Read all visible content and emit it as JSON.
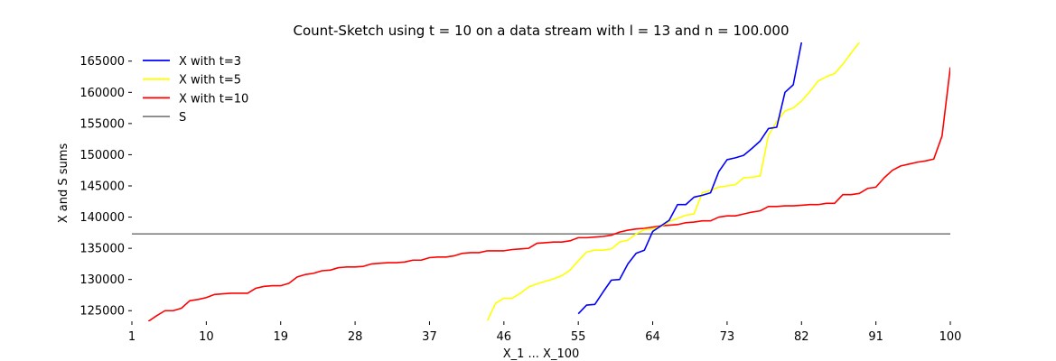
{
  "chart_data": {
    "type": "line",
    "title": "Count-Sketch using t = 10 on a data stream with l = 13 and n = 100.000",
    "xlabel": "X_1 ... X_100",
    "ylabel": "X and S sums",
    "xlim": [
      1,
      100
    ],
    "ylim": [
      123300,
      168000
    ],
    "xticks": [
      1,
      10,
      19,
      28,
      37,
      46,
      55,
      64,
      73,
      82,
      91,
      100
    ],
    "yticks": [
      125000,
      130000,
      135000,
      140000,
      145000,
      150000,
      155000,
      160000,
      165000
    ],
    "grid": false,
    "legend_position": "top-left",
    "series": [
      {
        "name": "X with t=3",
        "color": "#0000ff",
        "points": [
          [
            55,
            124500
          ],
          [
            56,
            125900
          ],
          [
            57,
            126000
          ],
          [
            58,
            128000
          ],
          [
            59,
            129900
          ],
          [
            60,
            130000
          ],
          [
            61,
            132500
          ],
          [
            62,
            134200
          ],
          [
            63,
            134700
          ],
          [
            64,
            137700
          ],
          [
            65,
            138600
          ],
          [
            66,
            139500
          ],
          [
            67,
            142000
          ],
          [
            68,
            142000
          ],
          [
            69,
            143200
          ],
          [
            70,
            143500
          ],
          [
            71,
            143900
          ],
          [
            72,
            147300
          ],
          [
            73,
            149200
          ],
          [
            74,
            149500
          ],
          [
            75,
            149900
          ],
          [
            76,
            151000
          ],
          [
            77,
            152200
          ],
          [
            78,
            154200
          ],
          [
            79,
            154400
          ],
          [
            80,
            160000
          ],
          [
            81,
            161200
          ],
          [
            82,
            168000
          ]
        ]
      },
      {
        "name": "X with t=5",
        "color": "#ffff00",
        "points": [
          [
            44,
            123400
          ],
          [
            45,
            126200
          ],
          [
            46,
            127000
          ],
          [
            47,
            127000
          ],
          [
            48,
            127800
          ],
          [
            49,
            128800
          ],
          [
            50,
            129300
          ],
          [
            51,
            129700
          ],
          [
            52,
            130100
          ],
          [
            53,
            130600
          ],
          [
            54,
            131500
          ],
          [
            55,
            133000
          ],
          [
            56,
            134400
          ],
          [
            57,
            134700
          ],
          [
            58,
            134700
          ],
          [
            59,
            134900
          ],
          [
            60,
            136000
          ],
          [
            61,
            136300
          ],
          [
            62,
            137300
          ],
          [
            63,
            138000
          ],
          [
            64,
            138100
          ],
          [
            65,
            138500
          ],
          [
            66,
            139300
          ],
          [
            67,
            139800
          ],
          [
            68,
            140300
          ],
          [
            69,
            140500
          ],
          [
            70,
            143900
          ],
          [
            71,
            144300
          ],
          [
            72,
            144800
          ],
          [
            73,
            145000
          ],
          [
            74,
            145200
          ],
          [
            75,
            146300
          ],
          [
            76,
            146400
          ],
          [
            77,
            146600
          ],
          [
            78,
            153100
          ],
          [
            79,
            155300
          ],
          [
            80,
            157000
          ],
          [
            81,
            157500
          ],
          [
            82,
            158600
          ],
          [
            83,
            160100
          ],
          [
            84,
            161800
          ],
          [
            85,
            162500
          ],
          [
            86,
            163000
          ],
          [
            87,
            164500
          ],
          [
            88,
            166300
          ],
          [
            89,
            168000
          ]
        ]
      },
      {
        "name": "X with t=10",
        "color": "#ff0000",
        "points": [
          [
            3,
            123300
          ],
          [
            4,
            124200
          ],
          [
            5,
            125000
          ],
          [
            6,
            125000
          ],
          [
            7,
            125400
          ],
          [
            8,
            126600
          ],
          [
            9,
            126800
          ],
          [
            10,
            127100
          ],
          [
            11,
            127600
          ],
          [
            12,
            127700
          ],
          [
            13,
            127800
          ],
          [
            14,
            127800
          ],
          [
            15,
            127800
          ],
          [
            16,
            128600
          ],
          [
            17,
            128900
          ],
          [
            18,
            129000
          ],
          [
            19,
            129000
          ],
          [
            20,
            129400
          ],
          [
            21,
            130400
          ],
          [
            22,
            130800
          ],
          [
            23,
            131000
          ],
          [
            24,
            131400
          ],
          [
            25,
            131500
          ],
          [
            26,
            131900
          ],
          [
            27,
            132000
          ],
          [
            28,
            132000
          ],
          [
            29,
            132100
          ],
          [
            30,
            132500
          ],
          [
            31,
            132600
          ],
          [
            32,
            132700
          ],
          [
            33,
            132700
          ],
          [
            34,
            132800
          ],
          [
            35,
            133100
          ],
          [
            36,
            133100
          ],
          [
            37,
            133500
          ],
          [
            38,
            133600
          ],
          [
            39,
            133600
          ],
          [
            40,
            133800
          ],
          [
            41,
            134200
          ],
          [
            42,
            134300
          ],
          [
            43,
            134300
          ],
          [
            44,
            134600
          ],
          [
            45,
            134600
          ],
          [
            46,
            134600
          ],
          [
            47,
            134800
          ],
          [
            48,
            134900
          ],
          [
            49,
            135000
          ],
          [
            50,
            135800
          ],
          [
            51,
            135900
          ],
          [
            52,
            136000
          ],
          [
            53,
            136000
          ],
          [
            54,
            136200
          ],
          [
            55,
            136700
          ],
          [
            56,
            136700
          ],
          [
            57,
            136800
          ],
          [
            58,
            136900
          ],
          [
            59,
            137100
          ],
          [
            60,
            137600
          ],
          [
            61,
            137900
          ],
          [
            62,
            138100
          ],
          [
            63,
            138200
          ],
          [
            64,
            138400
          ],
          [
            65,
            138600
          ],
          [
            66,
            138700
          ],
          [
            67,
            138800
          ],
          [
            68,
            139100
          ],
          [
            69,
            139200
          ],
          [
            70,
            139400
          ],
          [
            71,
            139400
          ],
          [
            72,
            140000
          ],
          [
            73,
            140200
          ],
          [
            74,
            140200
          ],
          [
            75,
            140500
          ],
          [
            76,
            140800
          ],
          [
            77,
            141000
          ],
          [
            78,
            141700
          ],
          [
            79,
            141700
          ],
          [
            80,
            141800
          ],
          [
            81,
            141800
          ],
          [
            82,
            141900
          ],
          [
            83,
            142000
          ],
          [
            84,
            142000
          ],
          [
            85,
            142200
          ],
          [
            86,
            142200
          ],
          [
            87,
            143600
          ],
          [
            88,
            143600
          ],
          [
            89,
            143800
          ],
          [
            90,
            144600
          ],
          [
            91,
            144800
          ],
          [
            92,
            146300
          ],
          [
            93,
            147500
          ],
          [
            94,
            148200
          ],
          [
            95,
            148500
          ],
          [
            96,
            148800
          ],
          [
            97,
            149000
          ],
          [
            98,
            149300
          ],
          [
            99,
            153000
          ],
          [
            100,
            164000
          ]
        ]
      },
      {
        "name": "S",
        "color": "#808080",
        "points": [
          [
            1,
            137300
          ],
          [
            100,
            137300
          ]
        ]
      }
    ]
  }
}
